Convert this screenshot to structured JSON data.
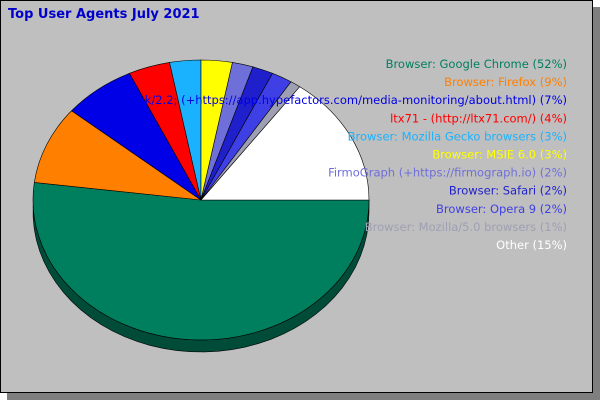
{
  "title": "Top User Agents July 2021",
  "chart_data": {
    "type": "pie",
    "title": "Top User Agents July 2021",
    "legend_position": "right",
    "slices": [
      {
        "label": "Browser: Google Chrome",
        "value": 52,
        "color": "#007f5f"
      },
      {
        "label": "Browser: Firefox",
        "value": 9,
        "color": "#ff7f00"
      },
      {
        "label": "Buck/2.2; (+https://app.hypefactors.com/media-monitoring/about.html)",
        "value": 7,
        "color": "#0000e6"
      },
      {
        "label": "ltx71 - (http://ltx71.com/)",
        "value": 4,
        "color": "#ff0000"
      },
      {
        "label": "Browser: Mozilla Gecko browsers",
        "value": 3,
        "color": "#1ab2ff"
      },
      {
        "label": "Browser: MSIE 6.0",
        "value": 3,
        "color": "#ffff00"
      },
      {
        "label": "FirmoGraph (+https://firmograph.io)",
        "value": 2,
        "color": "#6f6fd9"
      },
      {
        "label": "Browser: Safari",
        "value": 2,
        "color": "#1f1fcc"
      },
      {
        "label": "Browser: Opera 9",
        "value": 2,
        "color": "#3f3fe6"
      },
      {
        "label": "Browser: Mozilla/5.0 browsers",
        "value": 1,
        "color": "#9f9fb3"
      },
      {
        "label": "Other",
        "value": 15,
        "color": "#ffffff"
      }
    ],
    "legend_entries": [
      {
        "text": "Browser: Google Chrome (52%)",
        "color": "#007f5f"
      },
      {
        "text": "Browser: Firefox (9%)",
        "color": "#ff7f00"
      },
      {
        "text": "Buck/2.2; (+https://app.hypefactors.com/media-monitoring/about.html) (7%)",
        "color": "#0000e6"
      },
      {
        "text": "ltx71 - (http://ltx71.com/) (4%)",
        "color": "#ff0000"
      },
      {
        "text": "Browser: Mozilla Gecko browsers (3%)",
        "color": "#1ab2ff"
      },
      {
        "text": "Browser: MSIE 6.0 (3%)",
        "color": "#ffff00"
      },
      {
        "text": "FirmoGraph (+https://firmograph.io) (2%)",
        "color": "#6f6fd9"
      },
      {
        "text": "Browser: Safari (2%)",
        "color": "#1f1fcc"
      },
      {
        "text": "Browser: Opera 9 (2%)",
        "color": "#3f3fe6"
      },
      {
        "text": "Browser: Mozilla/5.0 browsers (1%)",
        "color": "#9f9fb3"
      },
      {
        "text": "Other (15%)",
        "color": "#ffffff"
      }
    ]
  }
}
